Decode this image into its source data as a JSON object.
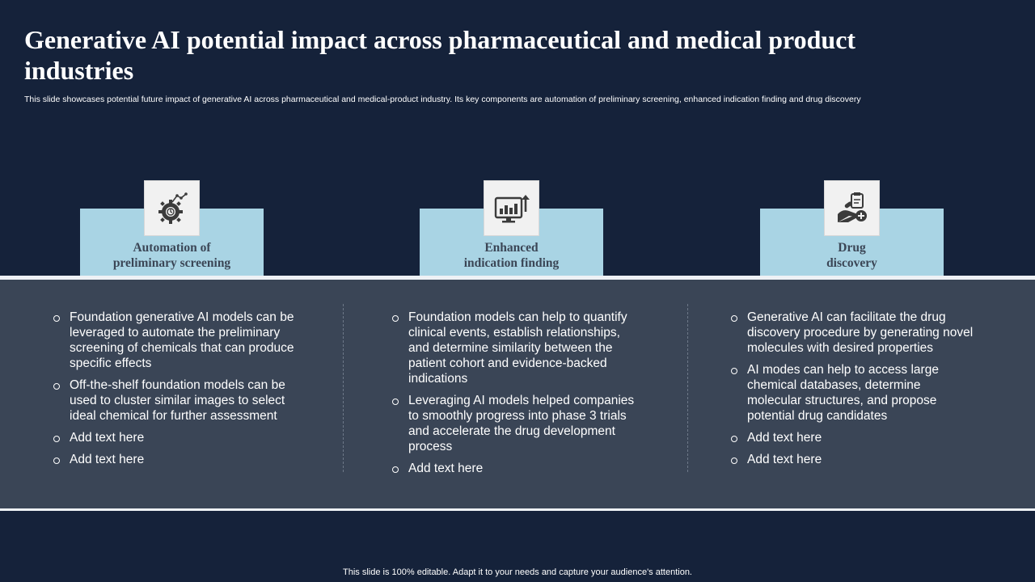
{
  "slide": {
    "title": "Generative AI potential impact across pharmaceutical and medical product industries",
    "subtitle": "This slide showcases potential future impact of generative AI across pharmaceutical and medical-product industry. Its key components are automation of preliminary screening, enhanced indication finding and drug discovery",
    "footer": "This slide is 100% editable. Adapt it to your needs and capture your audience's attention."
  },
  "columns": [
    {
      "label": "Automation of\npreliminary screening",
      "icon": "gear-automation-icon",
      "bullets": [
        "Foundation generative AI models can be leveraged to automate the preliminary screening of chemicals that can produce specific effects",
        "Off-the-shelf  foundation models can be used to cluster similar images to select ideal chemical for further  assessment",
        "Add text here",
        "Add text here"
      ]
    },
    {
      "label": "Enhanced\nindication finding",
      "icon": "monitor-growth-chart-icon",
      "bullets": [
        "Foundation models can help to quantify clinical events, establish relationships, and determine similarity between the patient cohort and evidence-backed indications",
        "Leveraging AI models helped companies to smoothly  progress into phase 3 trials and accelerate the drug development  process",
        "Add text here"
      ]
    },
    {
      "label": "Drug\ndiscovery",
      "icon": "hand-medicine-icon",
      "bullets": [
        "Generative AI can facilitate the drug discovery procedure by generating novel molecules with desired properties",
        "AI modes can help to access large chemical databases, determine molecular structures,  and propose potential drug candidates",
        "Add text here",
        "Add text here"
      ]
    }
  ],
  "colors": {
    "background": "#15223a",
    "tab": "#a9d4e4",
    "band": "#3a4556",
    "label_text": "#3b4656"
  }
}
